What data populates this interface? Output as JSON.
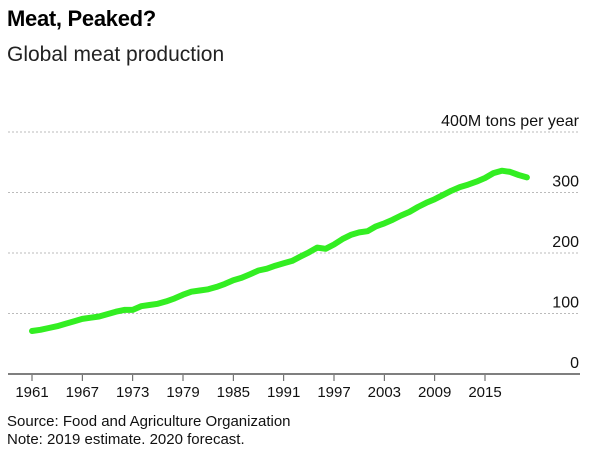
{
  "title": "Meat, Peaked?",
  "subtitle": "Global meat production",
  "source": "Source: Food and Agriculture Organization",
  "note": "Note: 2019 estimate. 2020 forecast.",
  "colors": {
    "line": "#33ee22",
    "grid": "#bbbbbb",
    "text": "#111111"
  },
  "chart_data": {
    "type": "line",
    "title": "Meat, Peaked?",
    "subtitle": "Global meat production",
    "xlabel": "",
    "ylabel": "",
    "x_ticks": [
      "1961",
      "1967",
      "1973",
      "1979",
      "1985",
      "1991",
      "1997",
      "2003",
      "2009",
      "2015"
    ],
    "y_ticks": [
      {
        "value": 0,
        "label": "0"
      },
      {
        "value": 100,
        "label": "100"
      },
      {
        "value": 200,
        "label": "200"
      },
      {
        "value": 300,
        "label": "300"
      },
      {
        "value": 400,
        "label": "400M tons per year"
      }
    ],
    "ylim": [
      0,
      400
    ],
    "xlim": [
      1959,
      2022
    ],
    "grid": true,
    "series": [
      {
        "name": "",
        "x": [
          1961,
          1962,
          1963,
          1964,
          1965,
          1966,
          1967,
          1968,
          1969,
          1970,
          1971,
          1972,
          1973,
          1974,
          1975,
          1976,
          1977,
          1978,
          1979,
          1980,
          1981,
          1982,
          1983,
          1984,
          1985,
          1986,
          1987,
          1988,
          1989,
          1990,
          1991,
          1992,
          1993,
          1994,
          1995,
          1996,
          1997,
          1998,
          1999,
          2000,
          2001,
          2002,
          2003,
          2004,
          2005,
          2006,
          2007,
          2008,
          2009,
          2010,
          2011,
          2012,
          2013,
          2014,
          2015,
          2016,
          2017,
          2018,
          2019,
          2020
        ],
        "values": [
          71,
          73,
          76,
          79,
          83,
          87,
          91,
          93,
          95,
          99,
          103,
          106,
          106,
          112,
          114,
          116,
          120,
          125,
          131,
          136,
          138,
          140,
          144,
          149,
          155,
          159,
          165,
          171,
          174,
          179,
          183,
          187,
          194,
          201,
          209,
          207,
          214,
          223,
          230,
          234,
          236,
          244,
          249,
          255,
          262,
          268,
          276,
          283,
          289,
          296,
          303,
          309,
          313,
          318,
          324,
          332,
          336,
          334,
          329,
          325
        ]
      }
    ]
  }
}
